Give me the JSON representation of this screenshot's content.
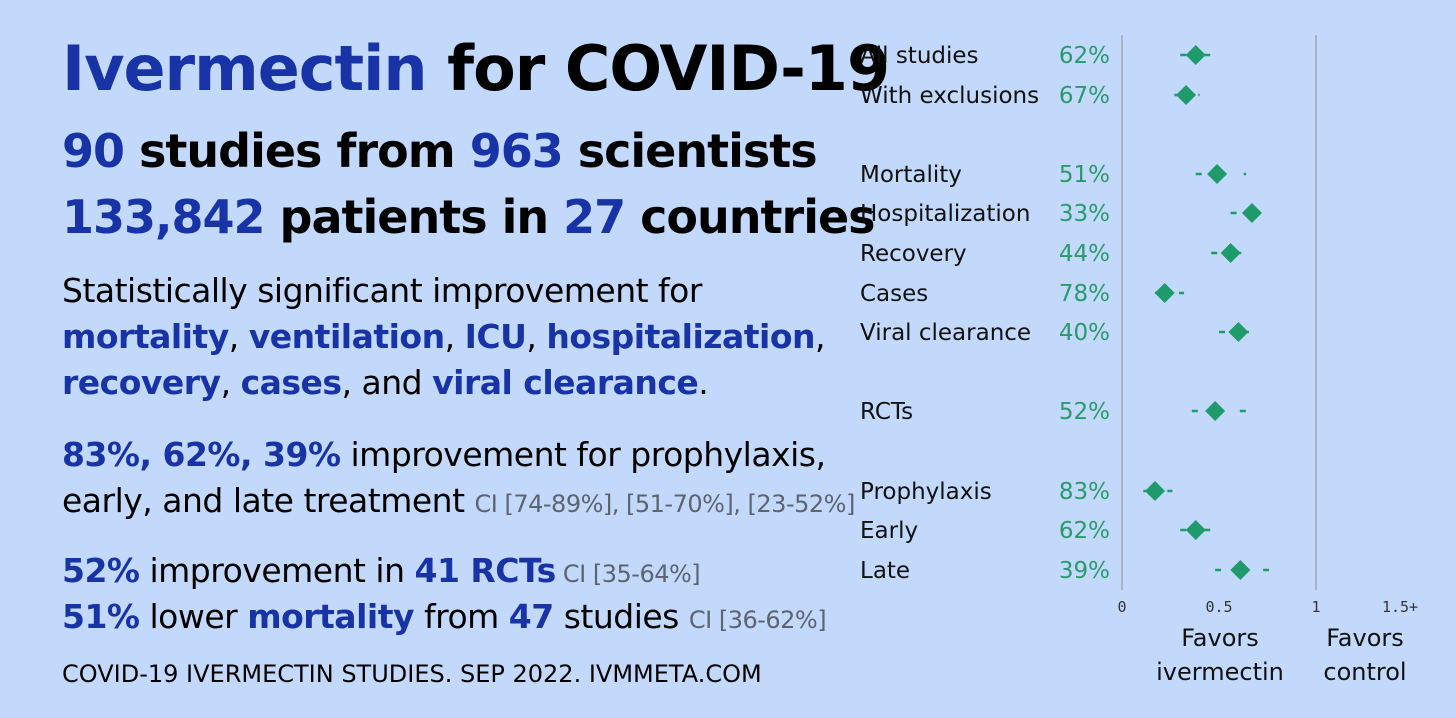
{
  "headline": {
    "drug": "Ivermectin",
    "rest": " for COVID-19"
  },
  "stats": {
    "line1": {
      "n1": "90",
      "t1": " studies from ",
      "n2": "963",
      "t2": " scientists"
    },
    "line2": {
      "n1": "133,842",
      "t1": " patients in ",
      "n2": "27",
      "t2": " countries"
    }
  },
  "significance": {
    "intro": "Statistically significant improvement for",
    "items": [
      "mortality",
      "ventilation",
      "ICU",
      "hospitalization",
      "recovery",
      "cases",
      "viral clearance"
    ],
    "sep": ", ",
    "and": ", and ",
    "end": "."
  },
  "timing": {
    "values": "83%, 62%, 39%",
    "text1": " improvement for prophylaxis,",
    "text2": "early, and late treatment ",
    "ci": "CI [74-89%], [51-70%], [23-52%]"
  },
  "rct": {
    "pct": "52%",
    "text": " improvement in ",
    "n": "41 RCTs",
    "ci": " CI [35-64%]"
  },
  "mortality": {
    "pct": "51%",
    "text1": " lower ",
    "word": "mortality",
    "text2": " from ",
    "n": "47",
    "text3": " studies ",
    "ci": "CI [36-62%]"
  },
  "footer": "COVID-19 IVERMECTIN STUDIES. SEP 2022. IVMMETA.COM",
  "chart_data": {
    "type": "scatter",
    "title": "",
    "xlabel": "",
    "ylabel": "",
    "xlim": [
      0,
      1.5
    ],
    "x_ticks": [
      "0",
      "0.5",
      "1",
      "1.5+"
    ],
    "axis_captions": {
      "left": [
        "Favors",
        "ivermectin"
      ],
      "right": [
        "Favors",
        "control"
      ]
    },
    "colors": {
      "marker": "#1e9a6b",
      "pct_text": "#2a9a6a",
      "axis_line": "#a8b4c4"
    },
    "rows": [
      {
        "label": "All studies",
        "pct": "62%",
        "x": 0.38,
        "lo": 0.3,
        "hi": 0.46
      },
      {
        "label": "With exclusions",
        "pct": "67%",
        "x": 0.33,
        "lo": 0.27,
        "hi": 0.4
      },
      {
        "label": "Mortality",
        "pct": "51%",
        "x": 0.49,
        "lo": 0.38,
        "hi": 0.64
      },
      {
        "label": "Hospitalization",
        "pct": "33%",
        "x": 0.67,
        "lo": 0.56,
        "hi": 0.8
      },
      {
        "label": "Recovery",
        "pct": "44%",
        "x": 0.56,
        "lo": 0.46,
        "hi": 0.7
      },
      {
        "label": "Cases",
        "pct": "78%",
        "x": 0.22,
        "lo": 0.17,
        "hi": 0.32
      },
      {
        "label": "Viral clearance",
        "pct": "40%",
        "x": 0.6,
        "lo": 0.5,
        "hi": 0.73
      },
      {
        "label": "RCTs",
        "pct": "52%",
        "x": 0.48,
        "lo": 0.36,
        "hi": 0.65
      },
      {
        "label": "Prophylaxis",
        "pct": "83%",
        "x": 0.17,
        "lo": 0.11,
        "hi": 0.26
      },
      {
        "label": "Early",
        "pct": "62%",
        "x": 0.38,
        "lo": 0.3,
        "hi": 0.49
      },
      {
        "label": "Late",
        "pct": "39%",
        "x": 0.61,
        "lo": 0.48,
        "hi": 0.77
      }
    ]
  }
}
